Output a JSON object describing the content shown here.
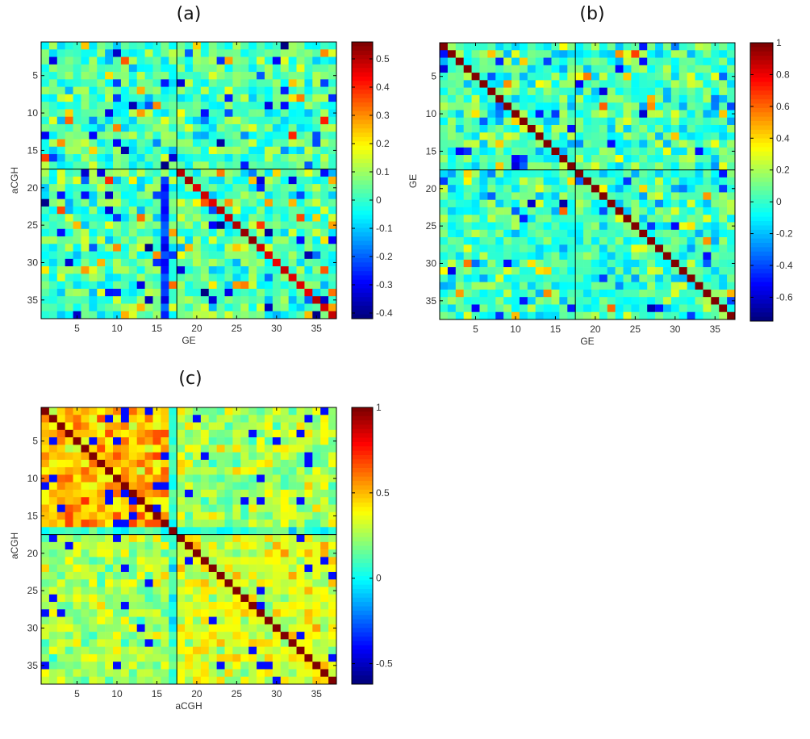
{
  "chart_data": [
    {
      "type": "heatmap",
      "panel_label": "(a)",
      "xlabel": "GE",
      "ylabel": "aCGH",
      "n_rows": 37,
      "n_cols": 37,
      "x_ticks": [
        5,
        10,
        15,
        20,
        25,
        30,
        35
      ],
      "y_ticks": [
        5,
        10,
        15,
        20,
        25,
        30,
        35
      ],
      "block_boundary": 17.5,
      "clim": [
        -0.42,
        0.56
      ],
      "colorbar_ticks": [
        0.5,
        0.4,
        0.3,
        0.2,
        0.1,
        0,
        -0.1,
        -0.2,
        -0.3,
        -0.4
      ],
      "colorbar_tick_labels": [
        "0.5",
        "0.4",
        "0.3",
        "0.2",
        "0.1",
        "0",
        "-0.1",
        "-0.2",
        "-0.3",
        "-0.4"
      ],
      "colormap": "jet",
      "diagonal": "high values along diagonal in lower-right block",
      "seed": 11
    },
    {
      "type": "heatmap",
      "panel_label": "(b)",
      "xlabel": "GE",
      "ylabel": "GE",
      "n_rows": 37,
      "n_cols": 37,
      "x_ticks": [
        5,
        10,
        15,
        20,
        25,
        30,
        35
      ],
      "y_ticks": [
        5,
        10,
        15,
        20,
        25,
        30,
        35
      ],
      "block_boundary": 17.5,
      "clim": [
        -0.75,
        1.0
      ],
      "colorbar_ticks": [
        1,
        0.8,
        0.6,
        0.4,
        0.2,
        0,
        -0.2,
        -0.4,
        -0.6
      ],
      "colorbar_tick_labels": [
        "1",
        "0.8",
        "0.6",
        "0.4",
        "0.2",
        "0",
        "-0.2",
        "-0.4",
        "-0.6"
      ],
      "colormap": "jet",
      "diagonal": "value 1 on full diagonal",
      "seed": 23
    },
    {
      "type": "heatmap",
      "panel_label": "(c)",
      "xlabel": "aCGH",
      "ylabel": "aCGH",
      "n_rows": 37,
      "n_cols": 37,
      "x_ticks": [
        5,
        10,
        15,
        20,
        25,
        30,
        35
      ],
      "y_ticks": [
        5,
        10,
        15,
        20,
        25,
        30,
        35
      ],
      "block_boundary": 17.5,
      "clim": [
        -0.62,
        1.0
      ],
      "colorbar_ticks": [
        1,
        0.5,
        0,
        -0.5
      ],
      "colorbar_tick_labels": [
        "1",
        "0.5",
        "0",
        "-0.5"
      ],
      "colormap": "jet",
      "diagonal": "value 1 on full diagonal",
      "seed": 37
    }
  ]
}
